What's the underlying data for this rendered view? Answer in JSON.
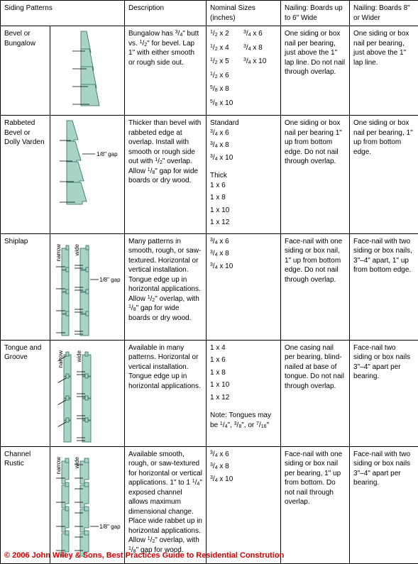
{
  "headers": {
    "patterns": "Siding Patterns",
    "description": "Description",
    "sizes": "Nominal Sizes (inches)",
    "nail_narrow": "Nailing: Boards up to 6\" Wide",
    "nail_wide": "Nailing: Boards 8\" or Wider"
  },
  "rows": {
    "bevel": {
      "name": "Bevel or Bungalow",
      "desc_html": "Bungalow has 3/4\" butt vs. 1/2\" for bevel. Lap 1\" with either smooth or rough side out.",
      "sizes": [
        "1/2 x 2",
        "3/4 x 6",
        "1/2 x 4",
        "3/4 x 8",
        "1/2 x 5",
        "3/4 x 10",
        "1/2 x 6",
        "",
        "5/8 x 8",
        "",
        "5/8 x 10",
        ""
      ],
      "nail_narrow": "One siding or box nail per bearing, just above the 1\" lap line. Do not nail through overlap.",
      "nail_wide": "One siding or box nail per bearing, just above the 1\" lap line."
    },
    "rabbeted": {
      "name": "Rabbeted Bevel or Dolly Varden",
      "gap_label": "1/8\" gap",
      "desc_html": "Thicker than bevel with rabbeted edge at overlap. Install with smooth or rough side out with 1/2\" overlap. Allow 1/8\" gap for wide boards or dry wood.",
      "sizes_std_label": "Standard",
      "sizes_std": [
        "3/4 x 6",
        "3/4 x 8",
        "3/4 x 10"
      ],
      "sizes_thk_label": "Thick",
      "sizes_thk": [
        "1 x 6",
        "1 x 8",
        "1 x 10",
        "1 x 12"
      ],
      "nail_narrow": "One siding or box nail per bearing 1\" up from bottom edge. Do not nail through overlap.",
      "nail_wide": "One siding or box nail per bearing, 1\" up from bottom edge."
    },
    "shiplap": {
      "name": "Shiplap",
      "narrow_label": "narrow",
      "wide_label": "wide",
      "gap_label": "1/8\" gap",
      "desc_html": "Many patterns in smooth, rough, or saw-textured. Horizontal or vertical installation. Tongue edge up in horizontal applications. Allow 1/2\" overlap, with 1/8\" gap for wide boards or dry wood.",
      "sizes": [
        "3/4 x 6",
        "3/4 x 8",
        "3/4 x 10"
      ],
      "nail_narrow": "Face-nail with one siding or box nail, 1\" up from bottom edge. Do not nail through overlap.",
      "nail_wide": "Face-nail with two siding or box nails, 3\"–4\" apart, 1\" up from bottom edge."
    },
    "tg": {
      "name": "Tongue and Groove",
      "narrow_label": "narrow",
      "wide_label": "wide",
      "desc_html": "Available in many patterns. Horizontal or vertical installation. Tongue edge up in horizontal applications.",
      "sizes": [
        "1 x 4",
        "1 x 6",
        "1 x 8",
        "1 x 10",
        "1 x 12"
      ],
      "sizes_note": "Note: Tongues may be 1/4\", 3/8\", or 7/16\"",
      "nail_narrow": "One casing nail per bearing, blind-nailed at base of tongue. Do not nail through overlap.",
      "nail_wide": "Face-nail two siding or box nails 3\"–4\" apart per bearing."
    },
    "channel": {
      "name": "Channel Rustic",
      "narrow_label": "narrow",
      "wide_label": "wide",
      "gap_label": "1/8\" gap",
      "desc_html": "Available smooth, rough, or saw-textured for horizontal or vertical applications. 1\" to 1 1/4\" exposed channel allows maximum dimensional change. Place wide rabbet up in horizontal applications. Allow 1/2\" overlap, with 1/8\" gap for wood.",
      "sizes": [
        "3/4 x 6",
        "3/4 x 8",
        "3/4 x 10"
      ],
      "nail_narrow": "Face-nail with one siding or box nail per bearing, 1\" up from bottom. Do not nail through overlap.",
      "nail_wide": "Face-nail with two siding or box nails 3\"–4\" apart per bearing."
    }
  },
  "colors": {
    "board_fill": "#a8d4c8",
    "board_stroke": "#2a6a5a",
    "nail": "#000000"
  },
  "copyright": "© 2006 John Wiley & Sons, Best Practices Guide to Residential Constrution"
}
